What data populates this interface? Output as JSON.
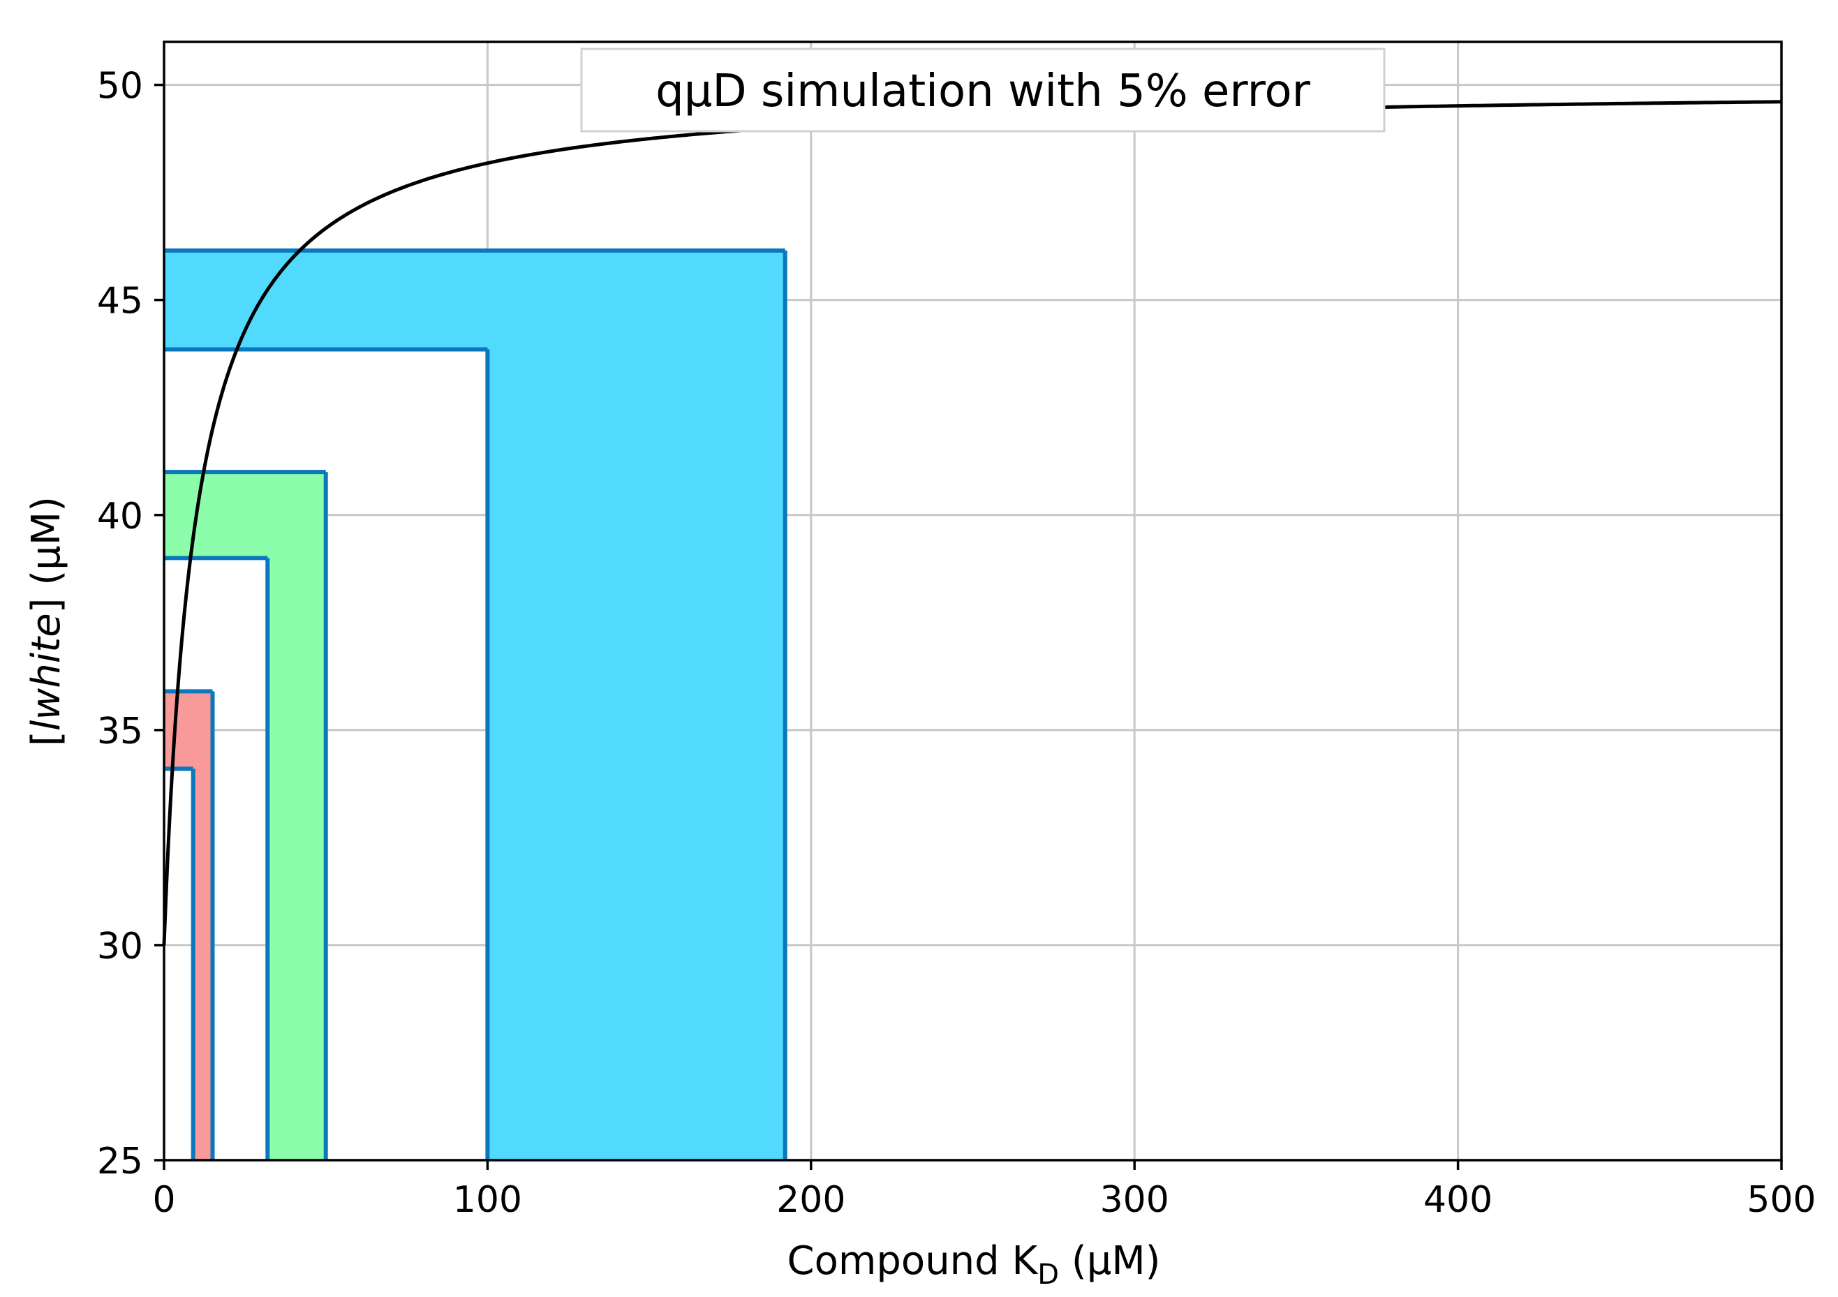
{
  "chart_data": {
    "type": "line",
    "legend_title": "qμD simulation with 5% error",
    "legend_placement": "top-center",
    "xlabel_main": "Compound K",
    "xlabel_sub": "D",
    "xlabel_unit": " (μM)",
    "ylabel_open": "[",
    "ylabel_italic": "lwhite",
    "ylabel_close": "] (μM)",
    "xlim": [
      0,
      500
    ],
    "ylim": [
      25,
      51
    ],
    "x_ticks": [
      0,
      100,
      200,
      300,
      400,
      500
    ],
    "y_ticks": [
      25,
      30,
      35,
      40,
      45,
      50
    ],
    "grid": true,
    "curve": {
      "color": "#000000",
      "model": "y = 50 - 20 * 10 / (x + 10)",
      "points": [
        {
          "x": 0,
          "y": 30.0
        },
        {
          "x": 5,
          "y": 36.7
        },
        {
          "x": 10,
          "y": 40.0
        },
        {
          "x": 25,
          "y": 44.3
        },
        {
          "x": 50,
          "y": 46.7
        },
        {
          "x": 100,
          "y": 48.2
        },
        {
          "x": 200,
          "y": 49.0
        },
        {
          "x": 300,
          "y": 49.4
        },
        {
          "x": 400,
          "y": 49.5
        },
        {
          "x": 500,
          "y": 49.6
        }
      ]
    },
    "error_bands": [
      {
        "name": "",
        "color": "#f99a9a",
        "x_range": [
          9,
          15
        ],
        "y_range": [
          34.1,
          35.9
        ]
      },
      {
        "name": "",
        "color": "#8bfdab",
        "x_range": [
          32,
          50
        ],
        "y_range": [
          39.0,
          41.0
        ]
      },
      {
        "name": "",
        "color": "#52d9fe",
        "x_range": [
          100,
          192
        ],
        "y_range": [
          43.85,
          46.15
        ]
      }
    ],
    "band_edge_color": "#0a78bd"
  }
}
